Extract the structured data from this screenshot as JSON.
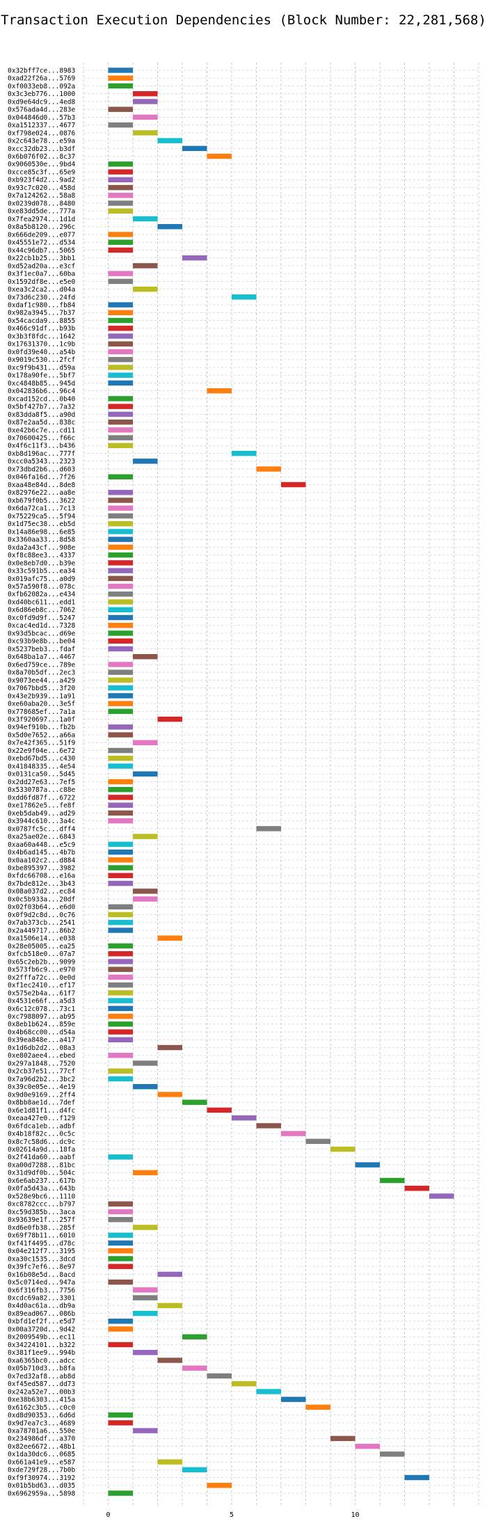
{
  "chart_data": {
    "type": "gantt",
    "title": "Transaction Execution Dependencies (Block Number: 22,281,568)",
    "xlabel": "",
    "ylabel": "",
    "xlim": [
      -1,
      15
    ],
    "xticks": [
      0,
      5,
      10
    ],
    "grid": true,
    "palette": [
      "#1f77b4",
      "#ff7f0e",
      "#2ca02c",
      "#d62728",
      "#9467bd",
      "#8c564b",
      "#e377c2",
      "#7f7f7f",
      "#bcbd22",
      "#17becf"
    ],
    "transactions": [
      {
        "label": "0x32bff7ce...8983",
        "start": 0
      },
      {
        "label": "0xad22f26a...5769",
        "start": 0
      },
      {
        "label": "0xf0033eb8...092a",
        "start": 0
      },
      {
        "label": "0x3c3eb776...1000",
        "start": 1
      },
      {
        "label": "0xd9e64dc9...4ed8",
        "start": 1
      },
      {
        "label": "0x576ada4d...283e",
        "start": 0
      },
      {
        "label": "0x044846d0...57b3",
        "start": 1
      },
      {
        "label": "0xa1512337...4677",
        "start": 0
      },
      {
        "label": "0xf798e024...0876",
        "start": 1
      },
      {
        "label": "0x2c643e78...e59a",
        "start": 2
      },
      {
        "label": "0xcc32db23...b3df",
        "start": 3
      },
      {
        "label": "0x6b076f02...8c37",
        "start": 4
      },
      {
        "label": "0x9060530e...9bd4",
        "start": 0
      },
      {
        "label": "0xcce85c3f...65e9",
        "start": 0
      },
      {
        "label": "0xb923f4d2...9ad2",
        "start": 0
      },
      {
        "label": "0x93c7c020...458d",
        "start": 0
      },
      {
        "label": "0x7a124262...58a8",
        "start": 0
      },
      {
        "label": "0x0239d078...8480",
        "start": 0
      },
      {
        "label": "0xe83dd5de...777a",
        "start": 0
      },
      {
        "label": "0x7fea2974...1d1d",
        "start": 1
      },
      {
        "label": "0x8a5b8120...296c",
        "start": 2
      },
      {
        "label": "0x666de209...e077",
        "start": 0
      },
      {
        "label": "0x45551e72...d534",
        "start": 0
      },
      {
        "label": "0x44c96db7...5065",
        "start": 0
      },
      {
        "label": "0x22cb1b25...3bb1",
        "start": 3
      },
      {
        "label": "0xd52ad20a...e3cf",
        "start": 1
      },
      {
        "label": "0x3f1ec0a7...60ba",
        "start": 0
      },
      {
        "label": "0x1592df8e...e5e0",
        "start": 0
      },
      {
        "label": "0xea3c2ca2...d04a",
        "start": 1
      },
      {
        "label": "0x73d6c230...24fd",
        "start": 5
      },
      {
        "label": "0xdaf1c980...fb84",
        "start": 0
      },
      {
        "label": "0x982a3945...7b37",
        "start": 0
      },
      {
        "label": "0x54cacda9...8855",
        "start": 0
      },
      {
        "label": "0x466c91df...b93b",
        "start": 0
      },
      {
        "label": "0x3b3f8fdc...1642",
        "start": 0
      },
      {
        "label": "0x17631370...1c9b",
        "start": 0
      },
      {
        "label": "0x0fd39e40...a54b",
        "start": 0
      },
      {
        "label": "0x9019c530...2fcf",
        "start": 0
      },
      {
        "label": "0xc9f9b431...d59a",
        "start": 0
      },
      {
        "label": "0x178a90fe...5bf7",
        "start": 0
      },
      {
        "label": "0xc4848b85...945d",
        "start": 0
      },
      {
        "label": "0x042836b6...96c4",
        "start": 4
      },
      {
        "label": "0xcad152cd...0b40",
        "start": 0
      },
      {
        "label": "0x5bf427b7...7a32",
        "start": 0
      },
      {
        "label": "0x83dda8f5...a90d",
        "start": 0
      },
      {
        "label": "0x87e2aa5d...838c",
        "start": 0
      },
      {
        "label": "0xe42b6c7e...cd11",
        "start": 0
      },
      {
        "label": "0x70600425...f66c",
        "start": 0
      },
      {
        "label": "0x4f6c11f3...b436",
        "start": 0
      },
      {
        "label": "0xb8d196ac...777f",
        "start": 5
      },
      {
        "label": "0xcc0a5343...2323",
        "start": 1
      },
      {
        "label": "0x73dbd2b6...d603",
        "start": 6
      },
      {
        "label": "0x046fa16d...7f26",
        "start": 0
      },
      {
        "label": "0xaa48e84d...8de8",
        "start": 7
      },
      {
        "label": "0x82976e22...aa8e",
        "start": 0
      },
      {
        "label": "0xb679f0b5...3622",
        "start": 0
      },
      {
        "label": "0x6da72ca1...7c13",
        "start": 0
      },
      {
        "label": "0x75229ca5...5f94",
        "start": 0
      },
      {
        "label": "0x1d75ec38...eb5d",
        "start": 0
      },
      {
        "label": "0x14a86e98...6e85",
        "start": 0
      },
      {
        "label": "0x3360aa33...8d58",
        "start": 0
      },
      {
        "label": "0xda2a43cf...908e",
        "start": 0
      },
      {
        "label": "0xf8c88ee3...4337",
        "start": 0
      },
      {
        "label": "0x0e8eb7d0...b39e",
        "start": 0
      },
      {
        "label": "0x33c591b5...ea34",
        "start": 0
      },
      {
        "label": "0x019afc75...a0d9",
        "start": 0
      },
      {
        "label": "0x57a590f8...078c",
        "start": 0
      },
      {
        "label": "0xfb62082a...e434",
        "start": 0
      },
      {
        "label": "0xd40bc611...edd1",
        "start": 0
      },
      {
        "label": "0x6d86eb8c...7062",
        "start": 0
      },
      {
        "label": "0xc0fd9d9f...5247",
        "start": 0
      },
      {
        "label": "0xcac4ed1d...7328",
        "start": 0
      },
      {
        "label": "0x93d5bcac...d69e",
        "start": 0
      },
      {
        "label": "0xc93b9e8b...be04",
        "start": 0
      },
      {
        "label": "0x5237beb3...fdaf",
        "start": 0
      },
      {
        "label": "0x648ba1a7...4467",
        "start": 1
      },
      {
        "label": "0x6ed759ce...789e",
        "start": 0
      },
      {
        "label": "0x8a70b5df...2ec3",
        "start": 0
      },
      {
        "label": "0x9073ee44...a429",
        "start": 0
      },
      {
        "label": "0x7067bbd5...3f20",
        "start": 0
      },
      {
        "label": "0x43e2b939...1a91",
        "start": 0
      },
      {
        "label": "0xe60aba20...3e5f",
        "start": 0
      },
      {
        "label": "0x778685ef...7a1a",
        "start": 0
      },
      {
        "label": "0x3f920697...1a0f",
        "start": 2
      },
      {
        "label": "0x94ef910b...fb2b",
        "start": 0
      },
      {
        "label": "0x5d0e7652...a66a",
        "start": 0
      },
      {
        "label": "0x7e42f365...51f9",
        "start": 1
      },
      {
        "label": "0x22e9f04e...6e72",
        "start": 0
      },
      {
        "label": "0xebd67bd5...c430",
        "start": 0
      },
      {
        "label": "0x41848335...4e54",
        "start": 0
      },
      {
        "label": "0x0131ca50...5d45",
        "start": 1
      },
      {
        "label": "0x2dd27e63...7ef5",
        "start": 0
      },
      {
        "label": "0x5330787a...c88e",
        "start": 0
      },
      {
        "label": "0xdd6fd87f...6722",
        "start": 0
      },
      {
        "label": "0xe17862e5...fe8f",
        "start": 0
      },
      {
        "label": "0xeb5dab49...ad29",
        "start": 0
      },
      {
        "label": "0x3944c610...3a4c",
        "start": 0
      },
      {
        "label": "0x0787fc5c...dff4",
        "start": 6
      },
      {
        "label": "0xa25ae02e...6843",
        "start": 1
      },
      {
        "label": "0xaa60a448...e5c9",
        "start": 0
      },
      {
        "label": "0x4b6ad145...4b7b",
        "start": 0
      },
      {
        "label": "0x0aa102c2...d884",
        "start": 0
      },
      {
        "label": "0xbe895397...3982",
        "start": 0
      },
      {
        "label": "0xfdc66708...e16a",
        "start": 0
      },
      {
        "label": "0x7bde812e...3b43",
        "start": 0
      },
      {
        "label": "0x08a037d2...ec84",
        "start": 1
      },
      {
        "label": "0x0c5b933a...20df",
        "start": 1
      },
      {
        "label": "0x02f03b64...e6d0",
        "start": 0
      },
      {
        "label": "0x0f9d2c8d...0c76",
        "start": 0
      },
      {
        "label": "0x7ab373cb...2541",
        "start": 0
      },
      {
        "label": "0x2a449717...86b2",
        "start": 0
      },
      {
        "label": "0xa1506e14...e038",
        "start": 2
      },
      {
        "label": "0x28e05005...ea25",
        "start": 0
      },
      {
        "label": "0xfcb518e0...07a7",
        "start": 0
      },
      {
        "label": "0x65c2eb2b...9099",
        "start": 0
      },
      {
        "label": "0x573fb6c9...e970",
        "start": 0
      },
      {
        "label": "0x2fffa72c...0e0d",
        "start": 0
      },
      {
        "label": "0xf1ec2410...ef17",
        "start": 0
      },
      {
        "label": "0x575e2b4a...61f7",
        "start": 0
      },
      {
        "label": "0x4531e66f...a5d3",
        "start": 0
      },
      {
        "label": "0x6c12c078...73c1",
        "start": 0
      },
      {
        "label": "0xc7988097...ab95",
        "start": 0
      },
      {
        "label": "0x8eb1b624...859e",
        "start": 0
      },
      {
        "label": "0x4b68cc00...d54a",
        "start": 0
      },
      {
        "label": "0x39ea848e...a417",
        "start": 0
      },
      {
        "label": "0x1d6db2d2...08a3",
        "start": 2
      },
      {
        "label": "0xe802aee4...ebed",
        "start": 0
      },
      {
        "label": "0x297a1848...7520",
        "start": 1
      },
      {
        "label": "0x2cb37e51...77cf",
        "start": 0
      },
      {
        "label": "0x7a96d2b2...3bc2",
        "start": 0
      },
      {
        "label": "0x39c0e05e...4e19",
        "start": 1
      },
      {
        "label": "0x9d0e9169...2ff4",
        "start": 2
      },
      {
        "label": "0x8bb8ae1d...7def",
        "start": 3
      },
      {
        "label": "0x6e1d81f1...d4fc",
        "start": 4
      },
      {
        "label": "0xeaa427e0...f129",
        "start": 5
      },
      {
        "label": "0x6fdca1eb...adbf",
        "start": 6
      },
      {
        "label": "0x4b18f82c...0c5c",
        "start": 7
      },
      {
        "label": "0x8c7c58d6...dc9c",
        "start": 8
      },
      {
        "label": "0x02614a9d...18fa",
        "start": 9
      },
      {
        "label": "0x2f41da60...aabf",
        "start": 0
      },
      {
        "label": "0xa00d7288...81bc",
        "start": 10
      },
      {
        "label": "0x31d9df0b...504c",
        "start": 1
      },
      {
        "label": "0x6e6ab237...617b",
        "start": 11
      },
      {
        "label": "0x0fa5d43a...643b",
        "start": 12
      },
      {
        "label": "0x528e9bc6...1110",
        "start": 13
      },
      {
        "label": "0xc8782ccc...b797",
        "start": 0
      },
      {
        "label": "0xc59d385b...3aca",
        "start": 0
      },
      {
        "label": "0x93639e1f...257f",
        "start": 0
      },
      {
        "label": "0xd6e0fb38...285f",
        "start": 1
      },
      {
        "label": "0x69f78b11...6010",
        "start": 0
      },
      {
        "label": "0xf41f4495...d78c",
        "start": 0
      },
      {
        "label": "0x04e212f7...3195",
        "start": 0
      },
      {
        "label": "0xa30c1535...3dcd",
        "start": 0
      },
      {
        "label": "0x39fc7ef6...8e97",
        "start": 0
      },
      {
        "label": "0x16b08e5d...8acd",
        "start": 2
      },
      {
        "label": "0x5c0714ed...947a",
        "start": 0
      },
      {
        "label": "0x6f316fb3...7756",
        "start": 1
      },
      {
        "label": "0xcdc69a82...3301",
        "start": 1
      },
      {
        "label": "0x4d0ac61a...db9a",
        "start": 2
      },
      {
        "label": "0x89ead067...086b",
        "start": 1
      },
      {
        "label": "0xbfd1ef2f...e5d7",
        "start": 0
      },
      {
        "label": "0x00a3720d...9d42",
        "start": 0
      },
      {
        "label": "0x2009549b...ec11",
        "start": 3
      },
      {
        "label": "0x34224101...b322",
        "start": 0
      },
      {
        "label": "0x381f1ee9...994b",
        "start": 1
      },
      {
        "label": "0xa6365bc0...adcc",
        "start": 2
      },
      {
        "label": "0x05b710d3...b8fa",
        "start": 3
      },
      {
        "label": "0x7ed32af8...ab8d",
        "start": 4
      },
      {
        "label": "0xf45ed587...dd73",
        "start": 5
      },
      {
        "label": "0x242a52e7...00b3",
        "start": 6
      },
      {
        "label": "0xe38b6303...415a",
        "start": 7
      },
      {
        "label": "0x6162c3b5...c0c0",
        "start": 8
      },
      {
        "label": "0xd8d90353...6d6d",
        "start": 0
      },
      {
        "label": "0x9d7ea7c3...4689",
        "start": 0
      },
      {
        "label": "0xa78701a6...550e",
        "start": 1
      },
      {
        "label": "0x234986df...a370",
        "start": 9
      },
      {
        "label": "0x82ee6672...48b1",
        "start": 10
      },
      {
        "label": "0x1da30dc6...0685",
        "start": 11
      },
      {
        "label": "0x661a41e9...e587",
        "start": 2
      },
      {
        "label": "0xde729f28...7b0b",
        "start": 3
      },
      {
        "label": "0xf9f30974...3192",
        "start": 12
      },
      {
        "label": "0x01b5bd63...d035",
        "start": 4
      },
      {
        "label": "0x6962959a...5898",
        "start": 0
      }
    ]
  }
}
